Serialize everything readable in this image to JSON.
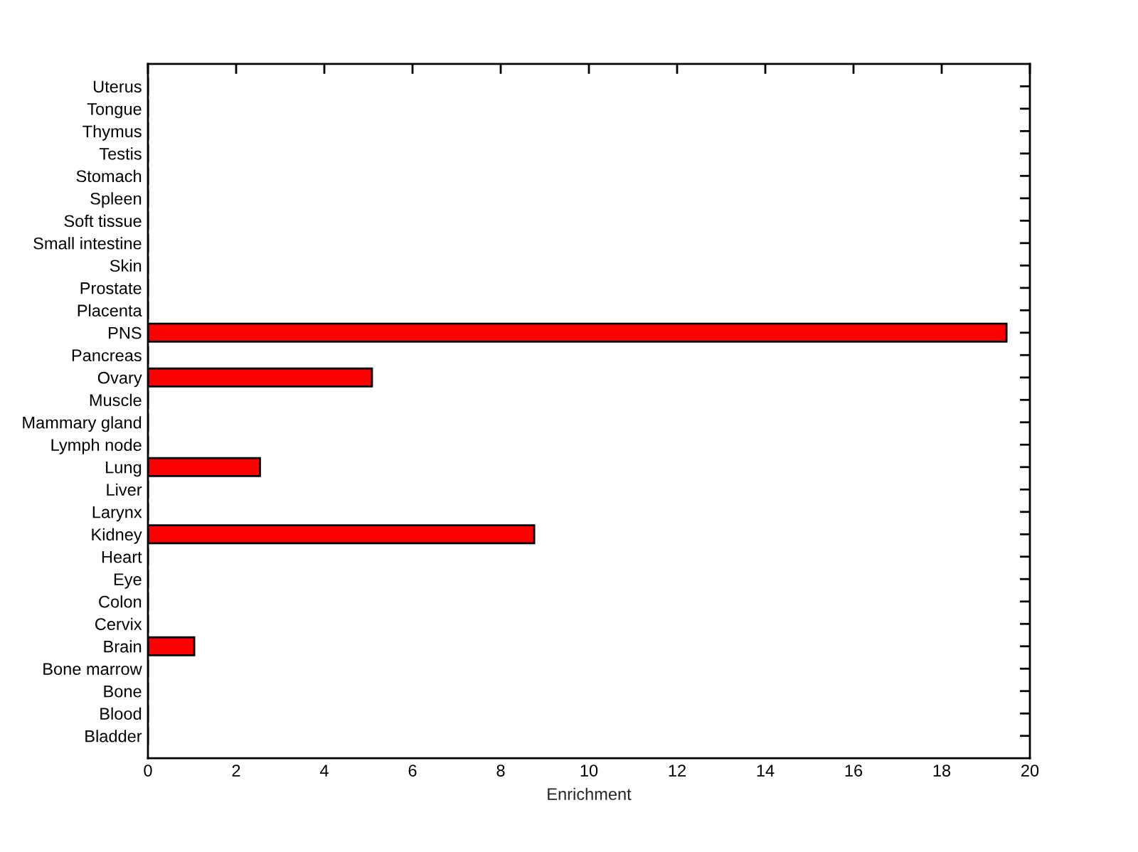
{
  "chart_data": {
    "type": "bar",
    "orientation": "horizontal",
    "xlabel": "Enrichment",
    "categories": [
      "Uterus",
      "Tongue",
      "Thymus",
      "Testis",
      "Stomach",
      "Spleen",
      "Soft tissue",
      "Small intestine",
      "Skin",
      "Prostate",
      "Placenta",
      "PNS",
      "Pancreas",
      "Ovary",
      "Muscle",
      "Mammary gland",
      "Lymph node",
      "Lung",
      "Liver",
      "Larynx",
      "Kidney",
      "Heart",
      "Eye",
      "Colon",
      "Cervix",
      "Brain",
      "Bone marrow",
      "Bone",
      "Blood",
      "Bladder"
    ],
    "values": [
      0,
      0,
      0,
      0,
      0,
      0,
      0,
      0,
      0,
      0,
      0,
      19.47,
      0,
      5.08,
      0,
      0,
      0,
      2.54,
      0,
      0,
      8.76,
      0,
      0,
      0,
      0,
      1.05,
      0,
      0,
      0,
      0
    ],
    "color": "#ff0000",
    "xlim": [
      0,
      20
    ],
    "xticks": [
      0,
      2,
      4,
      6,
      8,
      10,
      12,
      14,
      16,
      18,
      20
    ],
    "grid": false,
    "legend": false
  }
}
